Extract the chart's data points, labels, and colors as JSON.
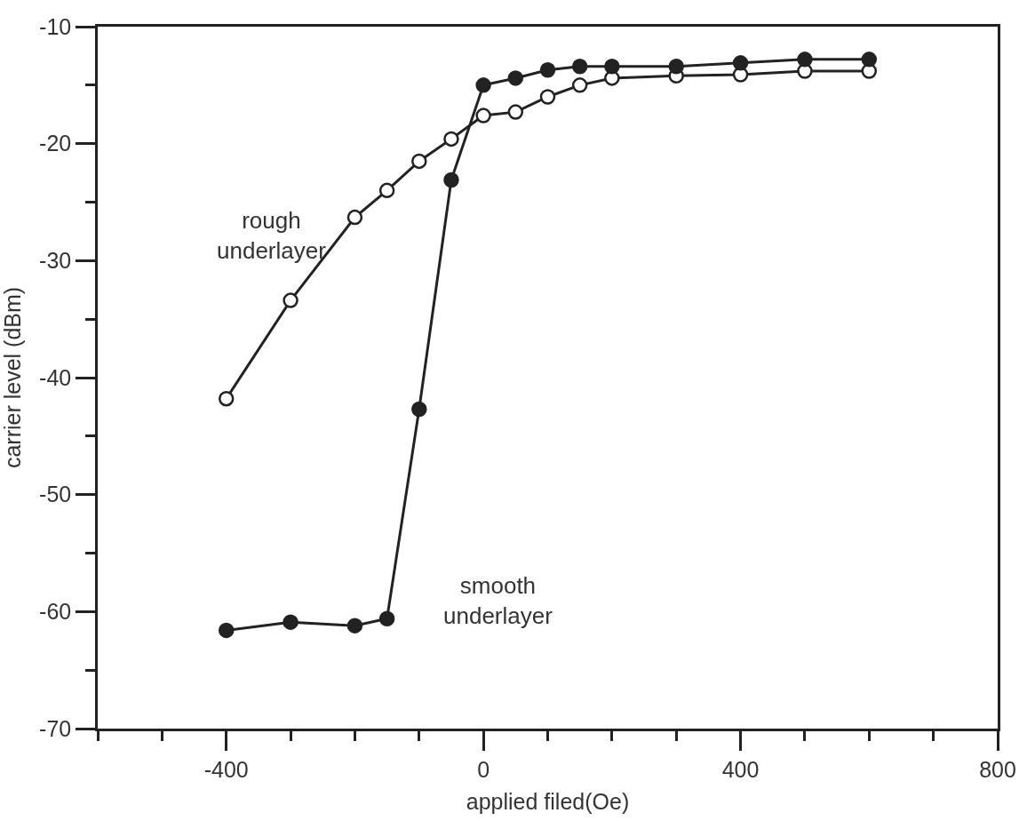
{
  "chart_data": {
    "type": "line",
    "xlabel": "applied filed(Oe)",
    "ylabel": "carrier level (dBm)",
    "xlim": [
      -600,
      800
    ],
    "ylim": [
      -70,
      -10
    ],
    "xticks": [
      {
        "value": -600,
        "label": null
      },
      {
        "value": -500,
        "label": null
      },
      -400,
      {
        "value": -300,
        "label": null
      },
      {
        "value": -200,
        "label": null
      },
      {
        "value": -100,
        "label": null
      },
      0,
      {
        "value": 100,
        "label": null
      },
      {
        "value": 200,
        "label": null
      },
      {
        "value": 300,
        "label": null
      },
      400,
      {
        "value": 500,
        "label": null
      },
      {
        "value": 600,
        "label": null
      },
      {
        "value": 700,
        "label": null
      },
      800
    ],
    "yticks": [
      -70,
      {
        "value": -65,
        "label": null
      },
      -60,
      {
        "value": -55,
        "label": null
      },
      -50,
      {
        "value": -45,
        "label": null
      },
      -40,
      {
        "value": -35,
        "label": null
      },
      -30,
      {
        "value": -25,
        "label": null
      },
      -20,
      {
        "value": -15,
        "label": null
      },
      -10
    ],
    "marker": "circle",
    "line_style": "solid",
    "series": [
      {
        "color": "#222222",
        "x": [
          -400,
          -300,
          -200,
          -150,
          -100,
          -50,
          0,
          50,
          100,
          150,
          200,
          300,
          400,
          500,
          600
        ],
        "values": [
          -41.8,
          -33.4,
          -26.3,
          -24.0,
          -21.5,
          -19.6,
          -17.6,
          -17.3,
          -16.0,
          -15.0,
          -14.4,
          -14.2,
          -14.1,
          -13.8,
          -13.8
        ]
      },
      {
        "color": "#222222",
        "x": [
          -400,
          -300,
          -200,
          -150,
          -100,
          -50,
          0,
          50,
          100,
          150,
          200,
          300,
          400,
          500,
          600
        ],
        "values": [
          -61.6,
          -60.9,
          -61.2,
          -60.6,
          -42.7,
          -23.1,
          -15.0,
          -14.4,
          -13.7,
          -13.4,
          -13.4,
          -13.4,
          -13.1,
          -12.8,
          -12.8
        ]
      }
    ],
    "annotations": [
      "rough\nunderlayer",
      "smooth\nunderlayer"
    ]
  }
}
